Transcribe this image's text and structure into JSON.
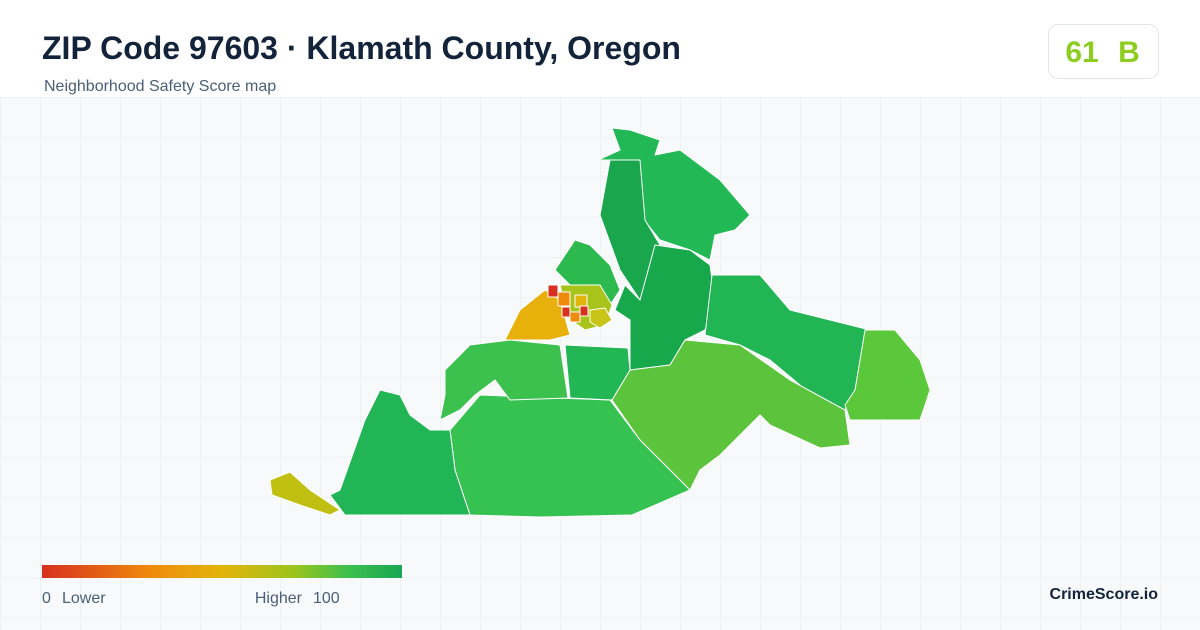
{
  "header": {
    "title": "ZIP Code 97603 · Klamath County, Oregon",
    "subtitle": "Neighborhood Safety Score map"
  },
  "score": {
    "value": "61",
    "grade": "B"
  },
  "legend": {
    "min": "0",
    "min_label": "Lower",
    "max_label": "Higher",
    "max": "100"
  },
  "brand": "CrimeScore.io"
}
